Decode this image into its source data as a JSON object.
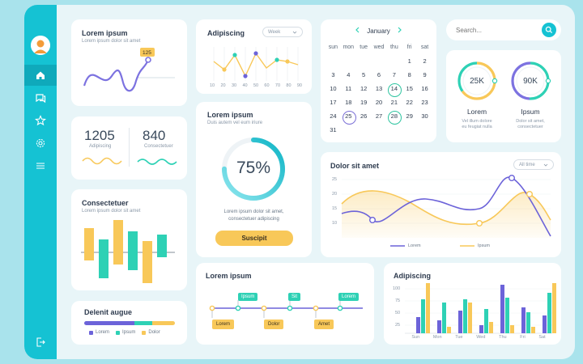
{
  "sidebar": {
    "icons": [
      "avatar-icon",
      "home-icon",
      "chat-icon",
      "star-icon",
      "gear-icon",
      "menu-icon",
      "logout-icon"
    ]
  },
  "card_wave": {
    "title": "Lorem ipsum",
    "subtitle": "Lorem ipsum dolor sit amet",
    "badge": "125"
  },
  "card_numbers": {
    "left": {
      "value": "1205",
      "label": "Adipiscing"
    },
    "right": {
      "value": "840",
      "label": "Consectetuer"
    }
  },
  "card_bars": {
    "title": "Consectetuer",
    "subtitle": "Lorem ipsum dolor sit amet"
  },
  "card_progress": {
    "title": "Delenit augue",
    "legend": [
      "Lorem",
      "Ipsum",
      "Dolor"
    ],
    "segments": [
      0.55,
      0.2,
      0.25
    ]
  },
  "card_line_small": {
    "title": "Adipiscing",
    "dropdown": "Week",
    "x_ticks": [
      "10",
      "20",
      "30",
      "40",
      "50",
      "60",
      "70",
      "80",
      "90"
    ]
  },
  "card_donut": {
    "title": "Lorem ipsum",
    "subtitle": "Duis autem vel eum iriure",
    "percent_label": "75%",
    "percent": 0.75,
    "text_line1": "Lorem ipsum dolor sit amet,",
    "text_line2": "consectetuer adipiscing",
    "button": "Suscipit"
  },
  "calendar": {
    "month": "January",
    "weekdays": [
      "sun",
      "mon",
      "tue",
      "wed",
      "thu",
      "fri",
      "sat"
    ],
    "days": [
      "",
      "",
      "",
      "",
      "",
      "1",
      "2",
      "3",
      "4",
      "5",
      "6",
      "7",
      "8",
      "9",
      "10",
      "11",
      "12",
      "13",
      "14",
      "15",
      "16",
      "17",
      "18",
      "19",
      "20",
      "21",
      "22",
      "23",
      "24",
      "25",
      "26",
      "27",
      "28",
      "29",
      "30",
      "31"
    ]
  },
  "search": {
    "placeholder": "Search..."
  },
  "rings": {
    "left": {
      "value": "25K",
      "title": "Lorem",
      "desc1": "Vel illum dolore",
      "desc2": "eu feugiat nulla"
    },
    "right": {
      "value": "90K",
      "title": "Ipsum",
      "desc1": "Dolor sit amet,",
      "desc2": "consectetuer"
    }
  },
  "card_dolor": {
    "title": "Dolor sit amet",
    "dropdown": "All time",
    "y_ticks": [
      "25",
      "20",
      "15",
      "10"
    ],
    "legend": [
      "Lorem",
      "Ipsum"
    ]
  },
  "card_timeline": {
    "title": "Lorem ipsum",
    "top_tags": [
      "Ipsum",
      "Sit",
      "Lorem"
    ],
    "bottom_tags": [
      "Lorem",
      "Dolor",
      "Amet"
    ]
  },
  "card_grouped": {
    "title": "Adipiscing",
    "days": [
      "Sun",
      "Mon",
      "Tue",
      "Wed",
      "Thu",
      "Fri",
      "Sat"
    ],
    "y_ticks": [
      "100",
      "75",
      "50",
      "25"
    ]
  },
  "colors": {
    "teal": "#15c2d3",
    "green": "#2ed1b5",
    "yellow": "#f8c859",
    "purple": "#6c63d9"
  }
}
